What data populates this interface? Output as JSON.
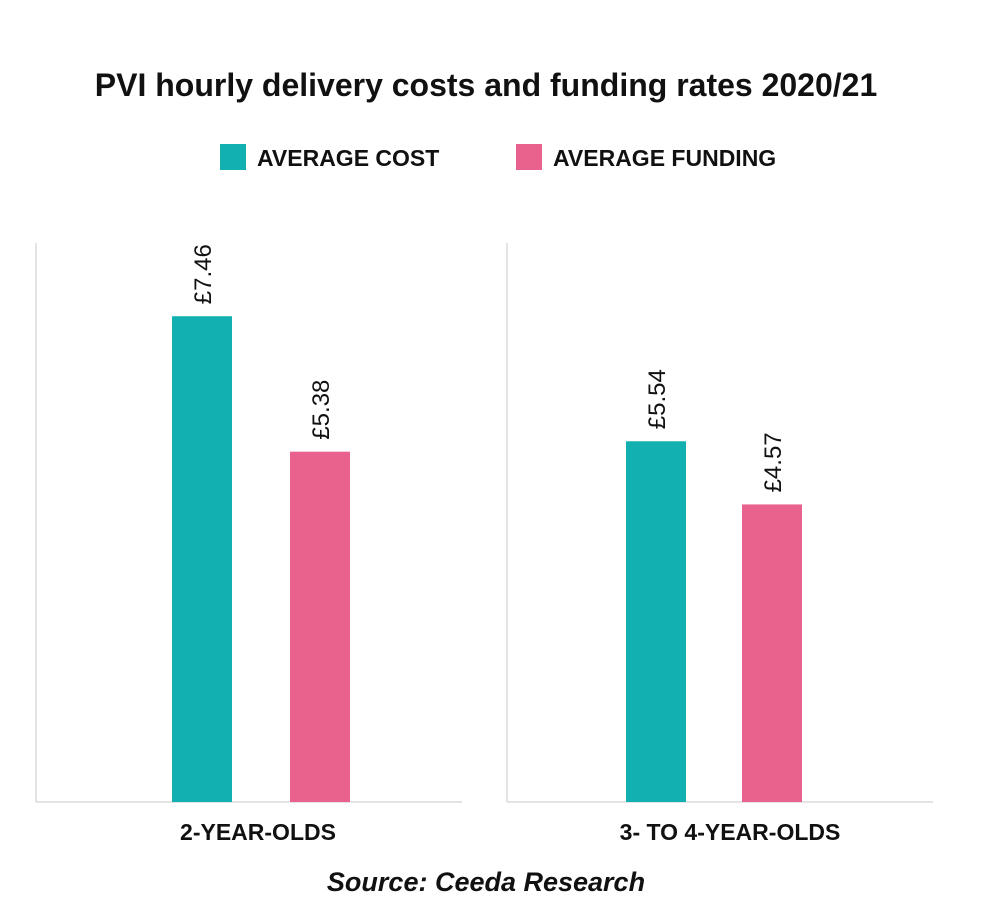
{
  "chart_data": {
    "type": "bar",
    "title": "PVI hourly delivery costs and funding rates 2020/21",
    "categories": [
      "2-YEAR-OLDS",
      "3- TO 4-YEAR-OLDS"
    ],
    "series": [
      {
        "name": "AVERAGE COST",
        "color": "#12b0b0",
        "values": [
          7.46,
          5.54
        ],
        "labels": [
          "£7.46",
          "£5.54"
        ]
      },
      {
        "name": "AVERAGE FUNDING",
        "color": "#e8628d",
        "values": [
          5.38,
          4.57
        ],
        "labels": [
          "£5.38",
          "£4.57"
        ]
      }
    ],
    "ylim": [
      0,
      8.6
    ],
    "legend_position": "top",
    "grid": false,
    "source": "Source: Ceeda Research"
  }
}
